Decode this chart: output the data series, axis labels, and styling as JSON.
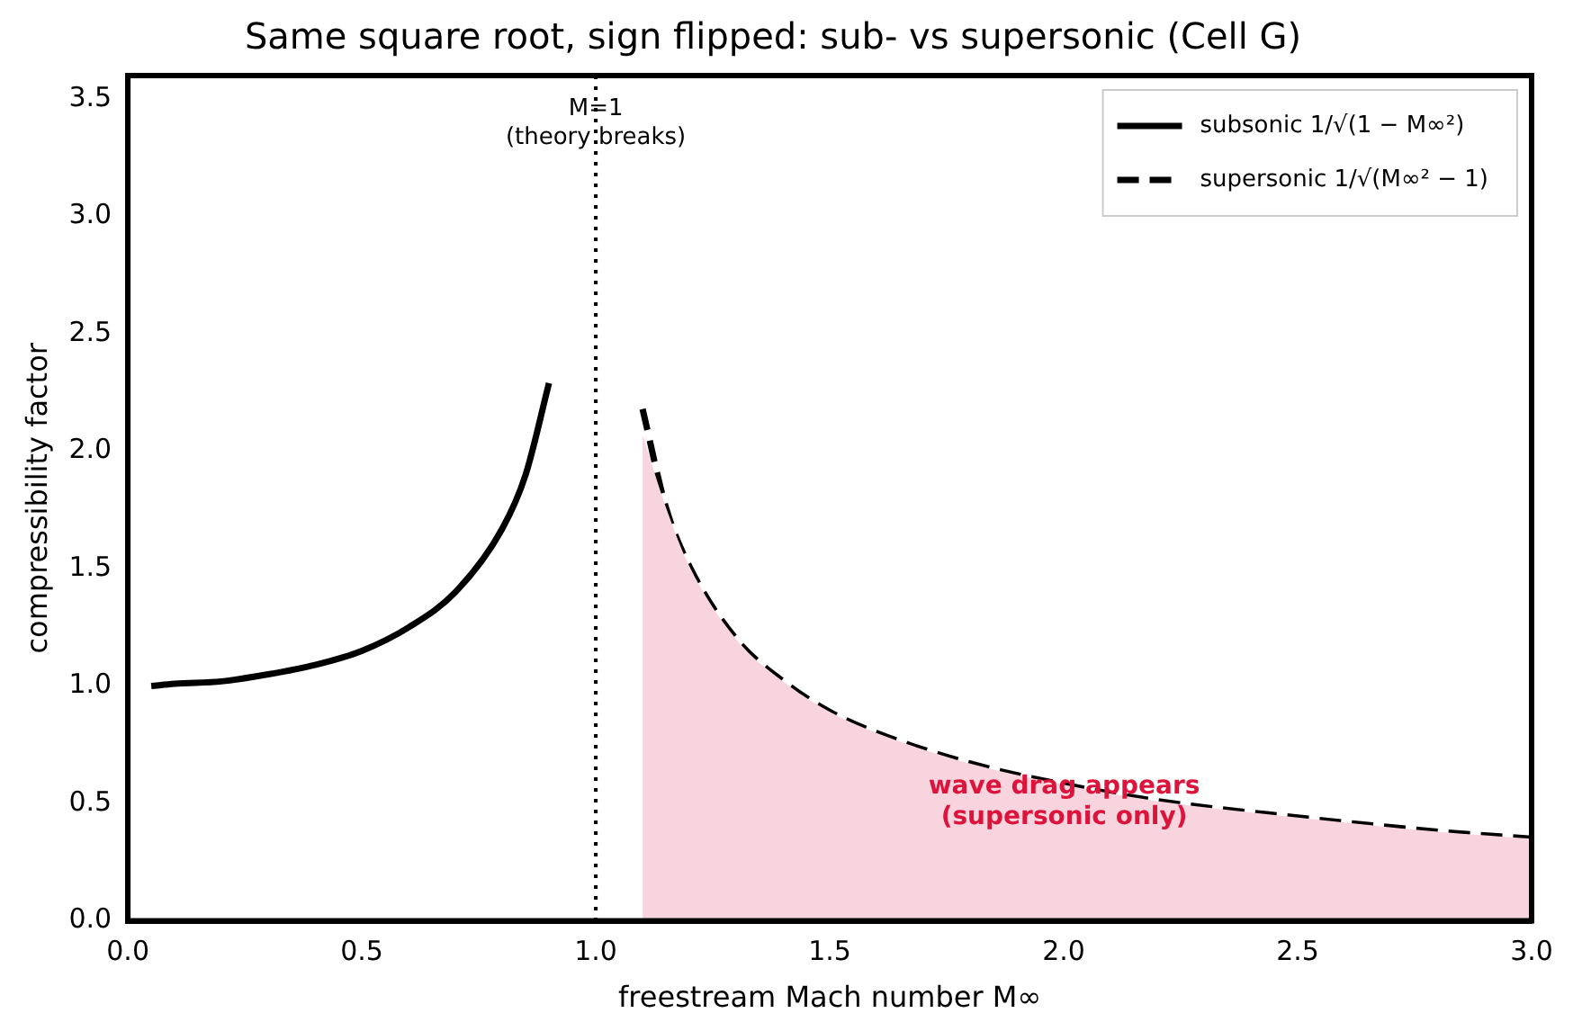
{
  "chart_data": {
    "type": "line",
    "title": "Same square root, sign flipped: sub- vs supersonic (Cell G)",
    "xlabel": "freestream Mach number M∞",
    "ylabel": "compressibility factor",
    "xlim": [
      0,
      3
    ],
    "xticks": [
      {
        "value": 0,
        "label": "0.0"
      },
      {
        "value": 0.5,
        "label": "0.5"
      },
      {
        "value": 1,
        "label": "1.0"
      },
      {
        "value": 1.5,
        "label": "1.5"
      },
      {
        "value": 2,
        "label": "2.0"
      },
      {
        "value": 2.5,
        "label": "2.5"
      },
      {
        "value": 3,
        "label": "3.0"
      }
    ],
    "ylim": [
      0,
      3.6
    ],
    "yticks": [
      {
        "value": 0,
        "label": "0.0"
      },
      {
        "value": 0.5,
        "label": "0.5"
      },
      {
        "value": 1,
        "label": "1.0"
      },
      {
        "value": 1.5,
        "label": "1.5"
      },
      {
        "value": 2,
        "label": "2.0"
      },
      {
        "value": 2.5,
        "label": "2.5"
      },
      {
        "value": 3,
        "label": "3.0"
      },
      {
        "value": 3.5,
        "label": "3.5"
      }
    ],
    "grid": false,
    "legend": "top right",
    "marker": "none",
    "series": [
      {
        "type": "area",
        "color": "#f8d5de",
        "x": [
          1.1,
          1.15,
          1.2,
          1.3,
          1.4,
          1.5,
          1.6,
          1.8,
          2.0,
          2.2,
          2.5,
          2.8,
          3.0
        ],
        "values": [
          2.07,
          1.76,
          1.51,
          1.2,
          1.02,
          0.89,
          0.8,
          0.67,
          0.58,
          0.51,
          0.44,
          0.38,
          0.35
        ]
      },
      {
        "name": "subsonic 1/√(1 − M∞²)",
        "color": "#000000",
        "line_style": "solid",
        "x": [
          0.05,
          0.1,
          0.2,
          0.3,
          0.4,
          0.5,
          0.6,
          0.7,
          0.8,
          0.85,
          0.9
        ],
        "values": [
          1.0,
          1.01,
          1.02,
          1.05,
          1.09,
          1.15,
          1.25,
          1.4,
          1.67,
          1.9,
          2.29
        ]
      },
      {
        "name": "supersonic 1/√(M∞² − 1)",
        "color": "#000000",
        "line_style": "dashed",
        "x": [
          1.1,
          1.15,
          1.2,
          1.3,
          1.4,
          1.5,
          1.6,
          1.8,
          2.0,
          2.2,
          2.5,
          2.8,
          3.0
        ],
        "values": [
          2.18,
          1.76,
          1.51,
          1.2,
          1.02,
          0.89,
          0.8,
          0.67,
          0.58,
          0.51,
          0.44,
          0.38,
          0.35
        ]
      }
    ],
    "ref_lines": [
      {
        "axis": "x",
        "value": 1,
        "label": "M=1\n(theory breaks)",
        "color": "#000000",
        "line_style": "dotted"
      }
    ],
    "annotations": [
      "wave drag appears\n(supersonic only)"
    ]
  }
}
